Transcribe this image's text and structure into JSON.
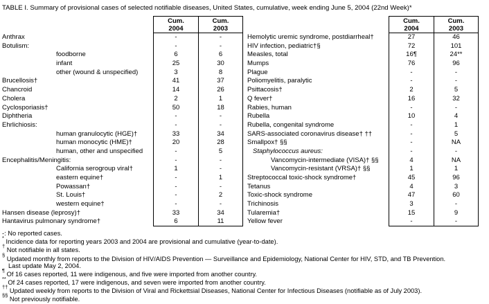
{
  "title": "TABLE I. Summary of provisional cases of selected notifiable diseases, United States, cumulative, week ending June 5, 2004 (22nd Week)*",
  "columns": {
    "cum": "Cum.",
    "y2004": "2004",
    "y2003": "2003"
  },
  "left_rows": [
    {
      "label": "Anthrax",
      "indent": 0,
      "c2004": "-",
      "c2003": "-"
    },
    {
      "label": "Botulism:",
      "indent": 0,
      "c2004": "-",
      "c2003": "-"
    },
    {
      "label": "foodborne",
      "indent": 1,
      "c2004": "6",
      "c2003": "6"
    },
    {
      "label": "infant",
      "indent": 1,
      "c2004": "25",
      "c2003": "30"
    },
    {
      "label": "other (wound & unspecified)",
      "indent": 1,
      "c2004": "3",
      "c2003": "8"
    },
    {
      "label": "Brucellosis†",
      "indent": 0,
      "c2004": "41",
      "c2003": "37"
    },
    {
      "label": "Chancroid",
      "indent": 0,
      "c2004": "14",
      "c2003": "26"
    },
    {
      "label": "Cholera",
      "indent": 0,
      "c2004": "2",
      "c2003": "1"
    },
    {
      "label": "Cyclosporiasis†",
      "indent": 0,
      "c2004": "50",
      "c2003": "18"
    },
    {
      "label": "Diphtheria",
      "indent": 0,
      "c2004": "-",
      "c2003": "-"
    },
    {
      "label": "Ehrlichiosis:",
      "indent": 0,
      "c2004": "-",
      "c2003": "-"
    },
    {
      "label": "human granulocytic (HGE)†",
      "indent": 1,
      "c2004": "33",
      "c2003": "34"
    },
    {
      "label": "human monocytic (HME)†",
      "indent": 1,
      "c2004": "20",
      "c2003": "28"
    },
    {
      "label": "human, other and unspecified",
      "indent": 1,
      "c2004": "-",
      "c2003": "5"
    },
    {
      "label": "Encephalitis/Meningitis:",
      "indent": 0,
      "c2004": "-",
      "c2003": "-"
    },
    {
      "label": "California serogroup viral†",
      "indent": 1,
      "c2004": "1",
      "c2003": "-"
    },
    {
      "label": "eastern equine†",
      "indent": 1,
      "c2004": "-",
      "c2003": "1"
    },
    {
      "label": "Powassan†",
      "indent": 1,
      "c2004": "-",
      "c2003": "-"
    },
    {
      "label": "St. Louis†",
      "indent": 1,
      "c2004": "-",
      "c2003": "2"
    },
    {
      "label": "western equine†",
      "indent": 1,
      "c2004": "-",
      "c2003": "-"
    },
    {
      "label": "Hansen disease (leprosy)†",
      "indent": 0,
      "c2004": "33",
      "c2003": "34"
    },
    {
      "label": "Hantavirus pulmonary syndrome†",
      "indent": 0,
      "c2004": "6",
      "c2003": "11"
    }
  ],
  "right_rows": [
    {
      "label": "Hemolytic uremic syndrome, postdiarrheal†",
      "indent": 0,
      "c2004": "27",
      "c2003": "46"
    },
    {
      "label": "HIV infection, pediatric†§",
      "indent": 0,
      "c2004": "72",
      "c2003": "101"
    },
    {
      "label": "Measles, total",
      "indent": 0,
      "c2004": "16¶",
      "c2003": "24**"
    },
    {
      "label": "Mumps",
      "indent": 0,
      "c2004": "76",
      "c2003": "96"
    },
    {
      "label": "Plague",
      "indent": 0,
      "c2004": "-",
      "c2003": "-"
    },
    {
      "label": "Poliomyelitis, paralytic",
      "indent": 0,
      "c2004": "-",
      "c2003": "-"
    },
    {
      "label": "Psittacosis†",
      "indent": 0,
      "c2004": "2",
      "c2003": "5"
    },
    {
      "label": "Q fever†",
      "indent": 0,
      "c2004": "16",
      "c2003": "32"
    },
    {
      "label": "Rabies, human",
      "indent": 0,
      "c2004": "-",
      "c2003": "-"
    },
    {
      "label": "Rubella",
      "indent": 0,
      "c2004": "10",
      "c2003": "4"
    },
    {
      "label": "Rubella, congenital syndrome",
      "indent": 0,
      "c2004": "-",
      "c2003": "1"
    },
    {
      "label": "SARS-associated coronavirus disease† ††",
      "indent": 0,
      "c2004": "-",
      "c2003": "5"
    },
    {
      "label": "Smallpox† §§",
      "indent": 0,
      "c2004": "-",
      "c2003": "NA"
    },
    {
      "label": "Staphylococcus aureus:",
      "indent": 1,
      "italic": true,
      "c2004": "-",
      "c2003": "-"
    },
    {
      "label": "Vancomycin-intermediate (VISA)† §§",
      "indent": 2,
      "c2004": "4",
      "c2003": "NA"
    },
    {
      "label": "Vancomycin-resistant (VRSA)† §§",
      "indent": 2,
      "c2004": "1",
      "c2003": "1"
    },
    {
      "label": "Streptococcal toxic-shock syndrome†",
      "indent": 0,
      "c2004": "45",
      "c2003": "96"
    },
    {
      "label": "Tetanus",
      "indent": 0,
      "c2004": "4",
      "c2003": "3"
    },
    {
      "label": "Toxic-shock syndrome",
      "indent": 0,
      "c2004": "47",
      "c2003": "60"
    },
    {
      "label": "Trichinosis",
      "indent": 0,
      "c2004": "3",
      "c2003": "-"
    },
    {
      "label": "Tularemia†",
      "indent": 0,
      "c2004": "15",
      "c2003": "9"
    },
    {
      "label": "Yellow fever",
      "indent": 0,
      "c2004": "-",
      "c2003": "-"
    }
  ],
  "footnotes": [
    {
      "marker": "-:",
      "sup": false,
      "text": "No reported cases."
    },
    {
      "marker": "*",
      "sup": true,
      "text": "Incidence data for reporting years 2003 and 2004 are provisional and cumulative (year-to-date)."
    },
    {
      "marker": "†",
      "sup": true,
      "text": "Not notifiable in all states."
    },
    {
      "marker": "§",
      "sup": true,
      "text": "Updated monthly from reports to the Division of HIV/AIDS Prevention — Surveillance and Epidemiology, National Center for HIV, STD, and TB Prevention.",
      "cont": "Last update May 2, 2004."
    },
    {
      "marker": "¶",
      "sup": true,
      "text": "Of 16 cases reported, 11 were indigenous, and five were imported from another country."
    },
    {
      "marker": "**",
      "sup": true,
      "text": "Of 24 cases reported, 17 were indigenous, and seven were imported from another country."
    },
    {
      "marker": "††",
      "sup": true,
      "text": "Updated weekly from reports to the Division of Viral and Rickettsial Diseases, National Center for Infectious Diseases (notifiable as of July 2003)."
    },
    {
      "marker": "§§",
      "sup": true,
      "text": "Not previously notifiable."
    }
  ]
}
